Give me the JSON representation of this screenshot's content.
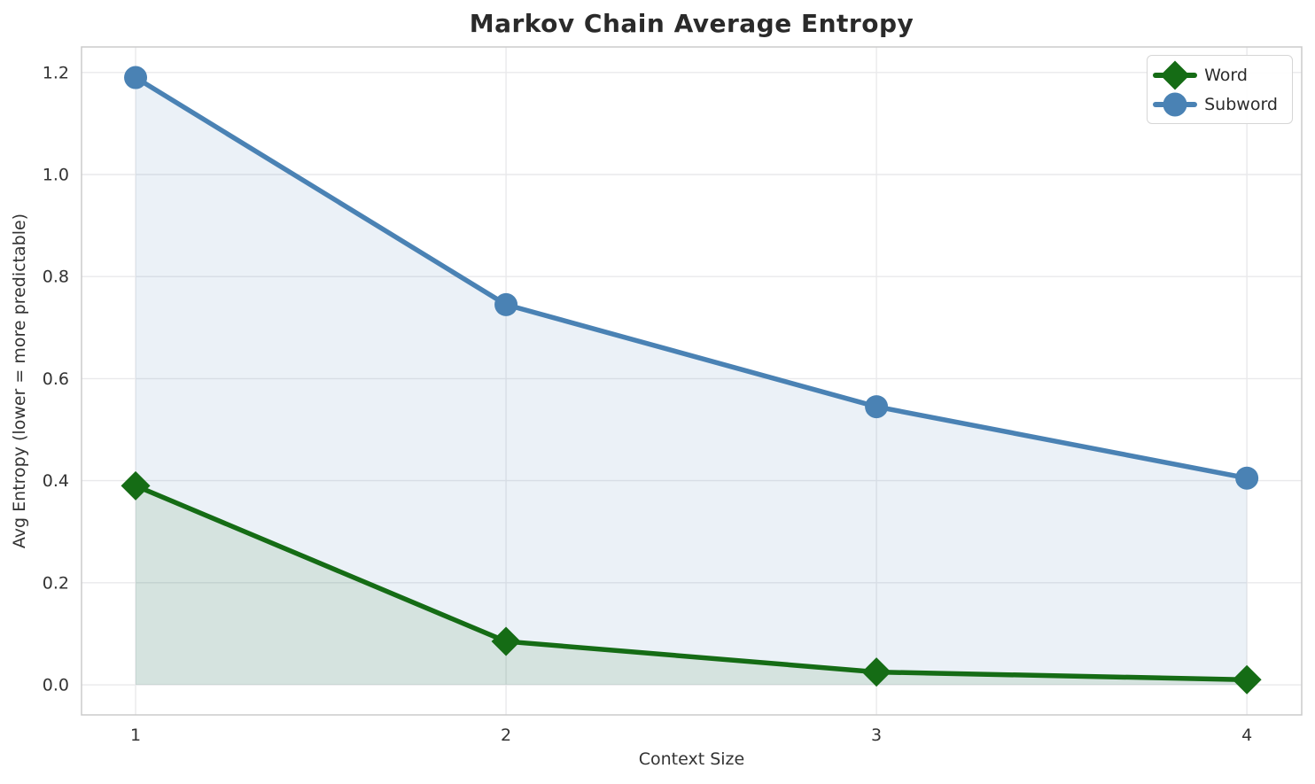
{
  "figure": {
    "title": "Markov Chain Average Entropy",
    "xlabel": "Context Size",
    "ylabel": "Avg Entropy (lower = more predictable)"
  },
  "legend": {
    "position": "upper right",
    "items": [
      {
        "label": "Word",
        "marker": "diamond",
        "color": "#156c15"
      },
      {
        "label": "Subword",
        "marker": "circle",
        "color": "#4a82b4"
      }
    ]
  },
  "chart_data": {
    "type": "line",
    "title": "Markov Chain Average Entropy",
    "xlabel": "Context Size",
    "ylabel": "Avg Entropy (lower = more predictable)",
    "x": [
      1,
      2,
      3,
      4
    ],
    "series": [
      {
        "name": "Word",
        "values": [
          0.39,
          0.085,
          0.025,
          0.01
        ],
        "color": "#156c15",
        "fill_rgba": "rgba(21,108,21,0.10)",
        "marker": "diamond",
        "fill_to_zero": true
      },
      {
        "name": "Subword",
        "values": [
          1.19,
          0.745,
          0.545,
          0.405
        ],
        "color": "#4a82b4",
        "fill_rgba": "rgba(70,130,180,0.11)",
        "marker": "circle",
        "fill_to_zero": true
      }
    ],
    "xticks": [
      "1",
      "2",
      "3",
      "4"
    ],
    "xtick_values": [
      1,
      2,
      3,
      4
    ],
    "yticks": [
      "0.0",
      "0.2",
      "0.4",
      "0.6",
      "0.8",
      "1.0",
      "1.2"
    ],
    "ytick_values": [
      0.0,
      0.2,
      0.4,
      0.6,
      0.8,
      1.0,
      1.2
    ],
    "xlim": [
      0.854,
      4.148
    ],
    "ylim": [
      -0.059,
      1.25
    ],
    "grid": true,
    "legend_position": "upper right",
    "style": {
      "grid_color": "#e9e9eb",
      "spine_color": "#cbcbcb",
      "tick_color": "#333333",
      "line_width": 5.5,
      "circle_radius": 13,
      "diamond_half_diag": 16.5
    }
  }
}
